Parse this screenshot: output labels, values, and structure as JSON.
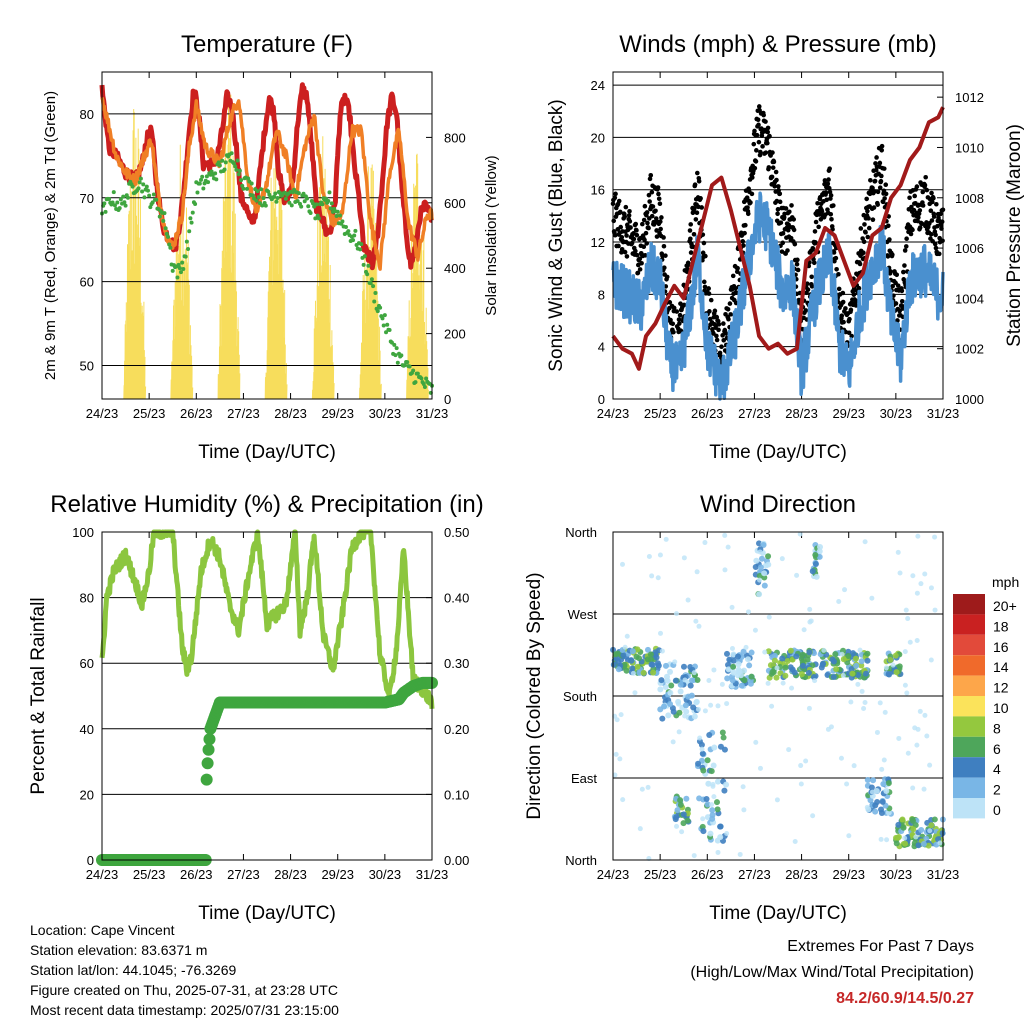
{
  "chart_data": [
    {
      "id": "temperature",
      "type": "line",
      "title": "Temperature (F)",
      "xlabel": "Time (Day/UTC)",
      "ylabel_left": "2m & 9m T (Red, Orange) & 2m Td (Green)",
      "ylabel_right": "Solar Insolation (Yellow)",
      "x_ticks": [
        "24/23",
        "25/23",
        "26/23",
        "27/23",
        "28/23",
        "29/23",
        "30/23",
        "31/23"
      ],
      "ylim_left": [
        46,
        85
      ],
      "yticks_left": [
        50,
        60,
        70,
        80
      ],
      "ylim_right": [
        0,
        1000
      ],
      "yticks_right": [
        0,
        200,
        400,
        600,
        800
      ],
      "series": [
        {
          "color": "#cc1f1f",
          "x": [
            0,
            0.15,
            0.3,
            0.5,
            0.7,
            0.85,
            0.95,
            1.05,
            1.15,
            1.25,
            1.33,
            1.45,
            1.55,
            1.62,
            1.72,
            1.85,
            1.95,
            2.05,
            2.15,
            2.25,
            2.35,
            2.45,
            2.55,
            2.65,
            2.75,
            2.85,
            2.95,
            3.05,
            3.15,
            3.25,
            3.35,
            3.45,
            3.55,
            3.65,
            3.75,
            3.85,
            3.95,
            4.05,
            4.15,
            4.25,
            4.35,
            4.45,
            4.55,
            4.65,
            4.75,
            4.85,
            4.95,
            5.05,
            5.15,
            5.25,
            5.35,
            5.45,
            5.55,
            5.65,
            5.75,
            5.85,
            5.95,
            6.05,
            6.15,
            6.25,
            6.35,
            6.45,
            6.55,
            6.65,
            6.75,
            6.85,
            6.95,
            7.0
          ],
          "y": [
            83,
            76,
            75,
            73,
            72,
            74,
            77,
            78,
            72,
            68,
            66,
            65,
            64,
            66,
            70,
            78,
            83,
            80,
            74,
            74,
            74,
            75,
            78,
            82,
            81,
            76,
            70,
            69,
            67,
            68,
            73,
            78,
            82,
            80,
            73,
            70,
            70,
            72,
            79,
            83,
            82,
            76,
            69,
            68,
            66,
            66,
            70,
            80,
            82,
            80,
            74,
            70,
            64,
            63,
            62,
            66,
            72,
            79,
            82,
            80,
            72,
            66,
            62,
            64,
            68,
            69,
            68,
            68
          ]
        },
        {
          "color": "#f07f25",
          "x": [
            0,
            0.3,
            0.5,
            0.7,
            0.9,
            1.05,
            1.2,
            1.35,
            1.5,
            1.7,
            1.85,
            2.0,
            2.2,
            2.5,
            2.7,
            2.9,
            3.1,
            3.3,
            3.5,
            3.7,
            3.9,
            4.1,
            4.3,
            4.5,
            4.7,
            4.9,
            5.1,
            5.3,
            5.5,
            5.7,
            5.9,
            6.1,
            6.3,
            6.5,
            6.7,
            6.9,
            7.0
          ],
          "y": [
            82,
            75,
            73,
            72,
            75,
            77,
            70,
            66,
            64,
            68,
            76,
            81,
            76,
            74,
            79,
            82,
            72,
            68,
            72,
            78,
            75,
            70,
            76,
            80,
            70,
            67,
            68,
            78,
            78,
            67,
            62,
            73,
            78,
            67,
            63,
            68,
            68
          ]
        },
        {
          "color": "#3fa63f",
          "x": [
            0,
            0.2,
            0.4,
            0.6,
            0.8,
            1.0,
            1.2,
            1.35,
            1.5,
            1.65,
            1.8,
            2.0,
            2.2,
            2.4,
            2.6,
            2.8,
            3.0,
            3.2,
            3.4,
            3.6,
            3.8,
            4.0,
            4.2,
            4.4,
            4.6,
            4.8,
            5.0,
            5.2,
            5.4,
            5.6,
            5.8,
            6.0,
            6.2,
            6.4,
            6.6,
            6.8,
            7.0
          ],
          "y": [
            68,
            70,
            69,
            71,
            72,
            70,
            69,
            67,
            62,
            61,
            64,
            71,
            72,
            73,
            74,
            75,
            72,
            71,
            70,
            70,
            71,
            70,
            70,
            69,
            68,
            70,
            68,
            66,
            65,
            62,
            58,
            55,
            52,
            50,
            49,
            48,
            47
          ]
        }
      ],
      "solar_peaks_wm2": [
        980,
        830,
        1000,
        940,
        820,
        760,
        850
      ]
    },
    {
      "id": "winds",
      "type": "scatter",
      "title": "Winds (mph) & Pressure (mb)",
      "xlabel": "Time (Day/UTC)",
      "ylabel_left": "Sonic Wind & Gust (Blue, Black)",
      "ylabel_right": "Station Pressure (Maroon)",
      "x_ticks": [
        "24/23",
        "25/23",
        "26/23",
        "27/23",
        "28/23",
        "29/23",
        "30/23",
        "31/23"
      ],
      "ylim_left": [
        0,
        25
      ],
      "yticks_left": [
        0,
        4,
        8,
        12,
        16,
        20,
        24
      ],
      "ylim_right": [
        1000,
        1013
      ],
      "yticks_right": [
        1000,
        1002,
        1004,
        1006,
        1008,
        1010,
        1012
      ],
      "wind_profile": {
        "x": [
          0,
          0.3,
          0.6,
          0.8,
          1.0,
          1.2,
          1.4,
          1.6,
          1.8,
          2.0,
          2.3,
          2.6,
          2.9,
          3.1,
          3.3,
          3.6,
          3.8,
          4.0,
          4.3,
          4.6,
          4.8,
          5.0,
          5.2,
          5.4,
          5.7,
          5.9,
          6.1,
          6.3,
          6.6,
          6.9,
          7.0
        ],
        "y": [
          9,
          8,
          7,
          10,
          9,
          3,
          2,
          6,
          11,
          4,
          1,
          5,
          11,
          14,
          13,
          8,
          9,
          2,
          8,
          11,
          4,
          2,
          6,
          9,
          12,
          6,
          3,
          9,
          10,
          8,
          8
        ]
      },
      "pressure": {
        "color": "#a11a1a",
        "x": [
          0,
          0.2,
          0.4,
          0.55,
          0.7,
          0.9,
          1.1,
          1.3,
          1.5,
          1.7,
          1.9,
          2.1,
          2.3,
          2.5,
          2.7,
          2.9,
          3.1,
          3.3,
          3.5,
          3.7,
          3.9,
          4.1,
          4.3,
          4.5,
          4.7,
          4.9,
          5.1,
          5.3,
          5.5,
          5.7,
          5.9,
          6.1,
          6.3,
          6.5,
          6.7,
          6.9,
          7.0
        ],
        "y": [
          1002.5,
          1002.0,
          1001.8,
          1001.2,
          1002.5,
          1003.0,
          1003.8,
          1004.5,
          1004.0,
          1005.5,
          1007.0,
          1008.5,
          1008.8,
          1007.5,
          1006.0,
          1004.5,
          1002.5,
          1002.0,
          1002.2,
          1001.8,
          1002.0,
          1005.5,
          1005.8,
          1006.8,
          1006.5,
          1005.5,
          1004.5,
          1005.0,
          1006.5,
          1006.8,
          1008.0,
          1008.5,
          1009.5,
          1010.0,
          1011.0,
          1011.2,
          1011.6
        ]
      }
    },
    {
      "id": "humidity",
      "type": "line",
      "title": "Relative Humidity (%) & Precipitation (in)",
      "xlabel": "Time (Day/UTC)",
      "ylabel_left": "Percent & Total Rainfall",
      "x_ticks": [
        "24/23",
        "25/23",
        "26/23",
        "27/23",
        "28/23",
        "29/23",
        "30/23",
        "31/23"
      ],
      "ylim_left": [
        0,
        100
      ],
      "yticks_left": [
        0,
        20,
        40,
        60,
        80,
        100
      ],
      "ylim_right": [
        0,
        0.5
      ],
      "yticks_right": [
        "0.00",
        "0.10",
        "0.20",
        "0.30",
        "0.40",
        "0.50"
      ],
      "rh": {
        "color": "#8cc63f",
        "x": [
          0,
          0.1,
          0.25,
          0.5,
          0.7,
          0.85,
          1.0,
          1.1,
          1.3,
          1.5,
          1.7,
          1.8,
          1.9,
          2.1,
          2.3,
          2.5,
          2.7,
          2.9,
          3.1,
          3.3,
          3.5,
          3.7,
          3.9,
          4.1,
          4.2,
          4.35,
          4.5,
          4.7,
          4.9,
          5.1,
          5.3,
          5.5,
          5.7,
          5.9,
          6.1,
          6.25,
          6.4,
          6.6,
          6.8,
          7.0
        ],
        "y": [
          60,
          80,
          88,
          93,
          85,
          78,
          88,
          100,
          100,
          100,
          65,
          58,
          62,
          88,
          98,
          92,
          78,
          70,
          86,
          100,
          72,
          75,
          78,
          100,
          70,
          80,
          99,
          68,
          58,
          75,
          95,
          100,
          100,
          62,
          50,
          65,
          95,
          55,
          52,
          48
        ]
      },
      "precip_total_in": {
        "color": "#3fa63f",
        "x": [
          0,
          2.2,
          2.21,
          2.25,
          2.3,
          2.4,
          2.5,
          3.0,
          3.5,
          4.0,
          4.5,
          5.0,
          5.5,
          6.0,
          6.3,
          6.4,
          6.6,
          6.8,
          7.0
        ],
        "y": [
          0,
          0,
          0.11,
          0.16,
          0.2,
          0.22,
          0.24,
          0.24,
          0.24,
          0.24,
          0.24,
          0.24,
          0.24,
          0.24,
          0.245,
          0.255,
          0.265,
          0.27,
          0.27
        ]
      }
    },
    {
      "id": "direction",
      "type": "scatter",
      "title": "Wind Direction",
      "xlabel": "Time (Day/UTC)",
      "ylabel_left": "Direction (Colored By Speed)",
      "x_ticks": [
        "24/23",
        "25/23",
        "26/23",
        "27/23",
        "28/23",
        "29/23",
        "30/23",
        "31/23"
      ],
      "ylim_left": [
        0,
        360
      ],
      "ytick_labels": [
        "North",
        "East",
        "South",
        "West",
        "North"
      ],
      "clusters": [
        {
          "x0": 0.0,
          "x1": 1.0,
          "y": 218,
          "spread": 14
        },
        {
          "x0": 1.0,
          "x1": 1.8,
          "y": 185,
          "spread": 30
        },
        {
          "x0": 1.3,
          "x1": 1.6,
          "y": 55,
          "spread": 15
        },
        {
          "x0": 1.8,
          "x1": 2.4,
          "y": 80,
          "spread": 60
        },
        {
          "x0": 2.4,
          "x1": 3.0,
          "y": 210,
          "spread": 20
        },
        {
          "x0": 3.0,
          "x1": 3.3,
          "y": 320,
          "spread": 30
        },
        {
          "x0": 3.3,
          "x1": 4.3,
          "y": 215,
          "spread": 15
        },
        {
          "x0": 4.2,
          "x1": 4.4,
          "y": 330,
          "spread": 20
        },
        {
          "x0": 4.4,
          "x1": 5.4,
          "y": 215,
          "spread": 15
        },
        {
          "x0": 5.4,
          "x1": 5.9,
          "y": 70,
          "spread": 20
        },
        {
          "x0": 5.8,
          "x1": 6.1,
          "y": 215,
          "spread": 12
        },
        {
          "x0": 6.0,
          "x1": 7.0,
          "y": 30,
          "spread": 15
        }
      ],
      "legend": {
        "title": "mph",
        "labels": [
          "20+",
          "18",
          "16",
          "14",
          "12",
          "10",
          "8",
          "6",
          "4",
          "2",
          "0"
        ],
        "colors": [
          "#9e1b1b",
          "#c92121",
          "#e24a3a",
          "#f06a2b",
          "#fda64a",
          "#fbe35b",
          "#94c83e",
          "#4ea65b",
          "#3f7fc0",
          "#79b6e6",
          "#bde3f7"
        ]
      }
    }
  ],
  "info": {
    "location": "Location: Cape Vincent",
    "elevation": "Station elevation: 83.6371 m",
    "latlon": "Station lat/lon: 44.1045; -76.3269",
    "created": "Figure created on Thu, 2025-07-31, at 23:28 UTC",
    "recent": "Most recent data timestamp: 2025/07/31 23:15:00"
  },
  "extremes": {
    "line1": "Extremes For Past 7 Days",
    "line2": "(High/Low/Max Wind/Total Precipitation)",
    "values": "84.2/60.9/14.5/0.27",
    "value_color": "#c62828"
  }
}
